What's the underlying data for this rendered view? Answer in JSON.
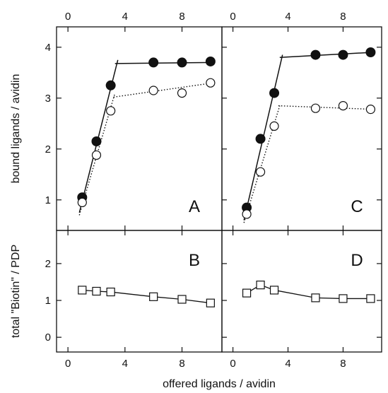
{
  "chart_data": {
    "type": "scatter",
    "xlabel": "offered ligands / avidin",
    "x_ticks": [
      0,
      4,
      8
    ],
    "xlim": [
      -0.8,
      10.8
    ],
    "panels": [
      {
        "label": "A",
        "ylabel": "bound ligands / avidin",
        "ylim": [
          0.4,
          4.4
        ],
        "y_ticks": [
          1,
          2,
          3,
          4
        ],
        "series": [
          {
            "marker": "filled-circle",
            "x": [
              1,
              2,
              3,
              6,
              8,
              10
            ],
            "y": [
              1.05,
              2.15,
              3.25,
              3.7,
              3.7,
              3.72
            ]
          },
          {
            "marker": "open-circle",
            "x": [
              1,
              2,
              3,
              6,
              8,
              10
            ],
            "y": [
              0.95,
              1.88,
              2.75,
              3.15,
              3.1,
              3.3
            ]
          }
        ],
        "fit_lines": [
          {
            "style": "solid",
            "points": [
              [
                0.8,
                0.75
              ],
              [
                3.5,
                3.75
              ]
            ]
          },
          {
            "style": "solid",
            "points": [
              [
                3.3,
                3.68
              ],
              [
                10.2,
                3.7
              ]
            ]
          },
          {
            "style": "dotted",
            "points": [
              [
                0.8,
                0.7
              ],
              [
                3.3,
                3.1
              ]
            ]
          },
          {
            "style": "dotted",
            "points": [
              [
                3.2,
                3.02
              ],
              [
                10.2,
                3.3
              ]
            ]
          }
        ]
      },
      {
        "label": "B",
        "ylabel": "total \"Biotin\" / PDP",
        "ylim": [
          -0.4,
          2.9
        ],
        "y_ticks": [
          0,
          1,
          2
        ],
        "series": [
          {
            "marker": "open-square",
            "x": [
              1,
              2,
              3,
              6,
              8,
              10
            ],
            "y": [
              1.28,
              1.25,
              1.23,
              1.1,
              1.03,
              0.93
            ],
            "connected": true
          }
        ]
      },
      {
        "label": "C",
        "ylabel": "",
        "ylim": [
          0.4,
          4.4
        ],
        "y_ticks": [
          1,
          2,
          3,
          4
        ],
        "series": [
          {
            "marker": "filled-circle",
            "x": [
              1,
              2,
              3,
              6,
              8,
              10
            ],
            "y": [
              0.85,
              2.2,
              3.1,
              3.85,
              3.85,
              3.9
            ]
          },
          {
            "marker": "open-circle",
            "x": [
              1,
              2,
              3,
              6,
              8,
              10
            ],
            "y": [
              0.72,
              1.55,
              2.45,
              2.8,
              2.85,
              2.78
            ]
          }
        ],
        "fit_lines": [
          {
            "style": "solid",
            "points": [
              [
                0.8,
                0.6
              ],
              [
                3.6,
                3.85
              ]
            ]
          },
          {
            "style": "solid",
            "points": [
              [
                3.4,
                3.8
              ],
              [
                10.2,
                3.9
              ]
            ]
          },
          {
            "style": "dotted",
            "points": [
              [
                0.8,
                0.55
              ],
              [
                3.4,
                2.85
              ]
            ]
          },
          {
            "style": "dotted",
            "points": [
              [
                3.3,
                2.85
              ],
              [
                10.2,
                2.78
              ]
            ]
          }
        ]
      },
      {
        "label": "D",
        "ylabel": "",
        "ylim": [
          -0.4,
          2.9
        ],
        "y_ticks": [
          0,
          1,
          2
        ],
        "series": [
          {
            "marker": "open-square",
            "x": [
              1,
              2,
              3,
              6,
              8,
              10
            ],
            "y": [
              1.2,
              1.42,
              1.28,
              1.07,
              1.05,
              1.05
            ],
            "connected": true
          }
        ]
      }
    ]
  }
}
